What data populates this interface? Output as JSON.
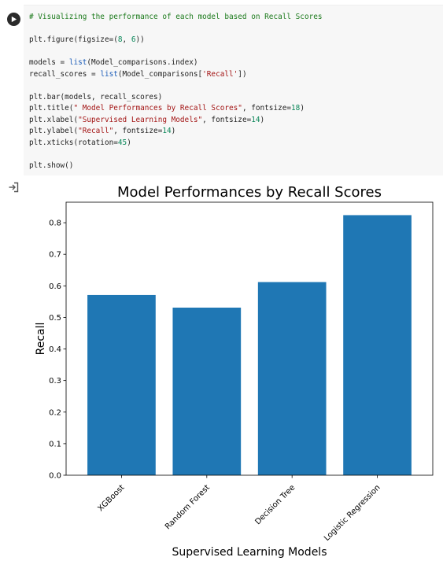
{
  "cell": {
    "run_icon": "play-icon",
    "code_lines": [
      "# Visualizing the performance of each model based on Recall Scores",
      "",
      "plt.figure(figsize=(8, 6))",
      "",
      "models = list(Model_comparisons.index)",
      "recall_scores = list(Model_comparisons['Recall'])",
      "",
      "plt.bar(models, recall_scores)",
      "plt.title(\" Model Performances by Recall Scores\", fontsize=18)",
      "plt.xlabel(\"Supervised Learning Models\", fontsize=14)",
      "plt.ylabel(\"Recall\", fontsize=14)",
      "plt.xticks(rotation=45)",
      "",
      "plt.show()"
    ]
  },
  "output": {
    "icon": "output-redirect-icon"
  },
  "chart_data": {
    "type": "bar",
    "title": "Model Performances by Recall Scores",
    "xlabel": "Supervised Learning Models",
    "ylabel": "Recall",
    "categories": [
      "XGBoost",
      "Random Forest",
      "Decision Tree",
      "Logistic Regression"
    ],
    "values": [
      0.571,
      0.531,
      0.612,
      0.824
    ],
    "ylim": [
      0,
      0.865
    ],
    "yticks": [
      "0.0",
      "0.1",
      "0.2",
      "0.3",
      "0.4",
      "0.5",
      "0.6",
      "0.7",
      "0.8"
    ],
    "bar_color": "#1f77b4",
    "xtick_rotation": 45,
    "grid": false
  }
}
